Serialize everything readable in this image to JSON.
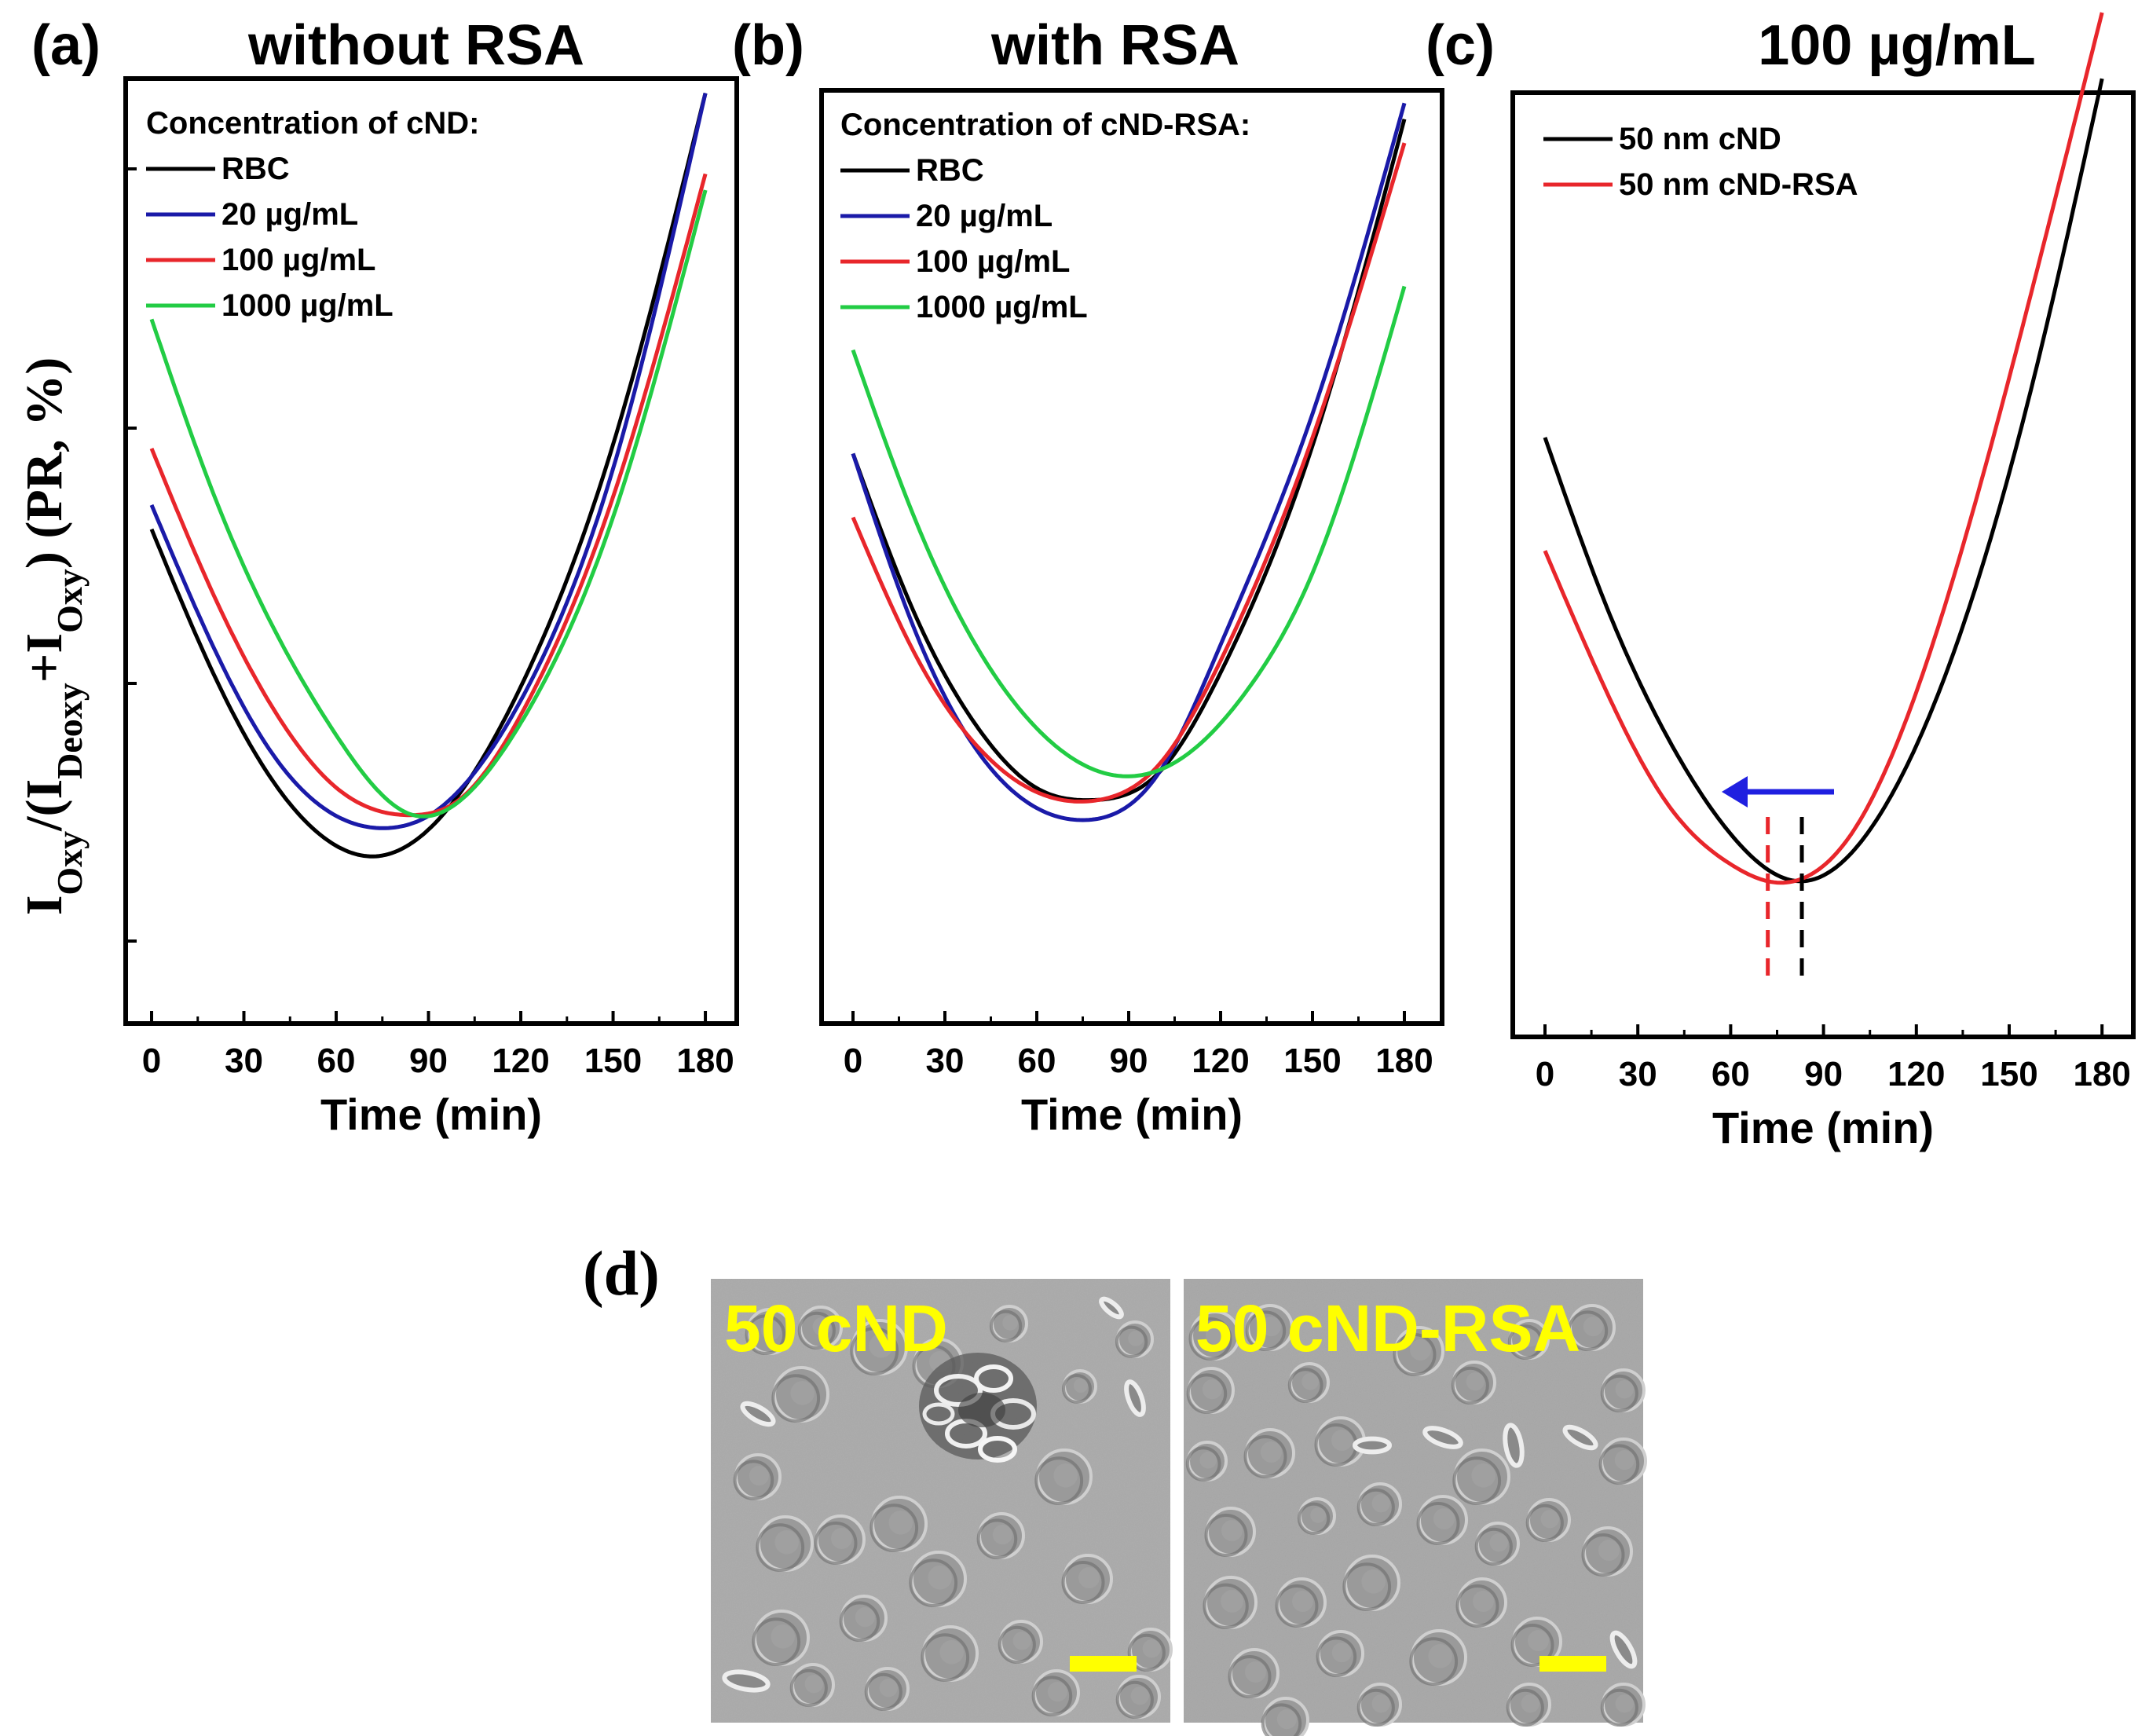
{
  "chart_data": [
    {
      "type": "line",
      "panel_label": "(a)",
      "title": "without RSA",
      "xlabel": "Time (min)",
      "ylabel": "I_Oxy/(I_Deoxy+I_Oxy) (PR, %)",
      "xlim": [
        -6,
        193
      ],
      "ylim": [
        0,
        100
      ],
      "xticks": [
        0,
        30,
        60,
        90,
        120,
        150,
        180
      ],
      "y_tick_labels_shown": false,
      "legend_title": "Concentration of cND:",
      "legend_position": "top-left",
      "series": [
        {
          "name": "RBC",
          "color": "#000000",
          "x": [
            0,
            20,
            40,
            60,
            73,
            90,
            120,
            150,
            180
          ],
          "y": [
            51.0,
            33.2,
            19.5,
            11.8,
            10.5,
            13.8,
            31.5,
            61.5,
            105.0
          ]
        },
        {
          "name": "20 µg/mL",
          "color": "#1a1aa8",
          "x": [
            0,
            20,
            40,
            60,
            77,
            90,
            120,
            150,
            180
          ],
          "y": [
            54.0,
            36.5,
            22.8,
            15.5,
            14.0,
            15.5,
            29.8,
            58.5,
            105.0
          ]
        },
        {
          "name": "100 µg/mL",
          "color": "#e8262b",
          "x": [
            0,
            20,
            40,
            60,
            85,
            100,
            120,
            150,
            180
          ],
          "y": [
            61.0,
            43.0,
            28.5,
            19.0,
            15.6,
            17.5,
            28.0,
            55.0,
            95.0
          ]
        },
        {
          "name": "1000 µg/mL",
          "color": "#22cc44",
          "x": [
            0,
            20,
            40,
            60,
            85,
            100,
            120,
            150,
            180
          ],
          "y": [
            77.0,
            55.5,
            38.5,
            25.5,
            15.6,
            17.3,
            27.0,
            52.5,
            93.0
          ]
        }
      ]
    },
    {
      "type": "line",
      "panel_label": "(b)",
      "title": "with RSA",
      "xlabel": "Time (min)",
      "ylabel": "",
      "xlim": [
        -6,
        193
      ],
      "ylim": [
        0,
        100
      ],
      "xticks": [
        0,
        30,
        60,
        90,
        120,
        150,
        180
      ],
      "y_tick_labels_shown": false,
      "legend_title": "Concentration of cND-RSA:",
      "legend_position": "top-left",
      "series": [
        {
          "name": "RBC",
          "color": "#000000",
          "x": [
            0,
            20,
            40,
            60,
            78,
            100,
            120,
            150,
            180
          ],
          "y": [
            61.0,
            41.0,
            27.0,
            19.0,
            17.5,
            21.0,
            33.5,
            62.0,
            103.0
          ]
        },
        {
          "name": "20 µg/mL",
          "color": "#1a1aa8",
          "x": [
            0,
            20,
            40,
            60,
            76,
            100,
            120,
            150,
            180
          ],
          "y": [
            61.0,
            39.0,
            24.0,
            16.5,
            15.0,
            21.0,
            37.0,
            66.0,
            105.0
          ]
        },
        {
          "name": "100 µg/mL",
          "color": "#e8262b",
          "x": [
            0,
            20,
            40,
            60,
            80,
            100,
            120,
            150,
            180
          ],
          "y": [
            53.0,
            36.0,
            24.5,
            18.5,
            17.5,
            22.0,
            35.0,
            63.0,
            100.0
          ]
        },
        {
          "name": "1000 µg/mL",
          "color": "#22cc44",
          "x": [
            0,
            20,
            40,
            60,
            88,
            110,
            130,
            150,
            180
          ],
          "y": [
            74.0,
            53.0,
            37.0,
            26.5,
            20.5,
            23.5,
            32.0,
            46.0,
            82.0
          ]
        }
      ]
    },
    {
      "type": "line",
      "panel_label": "(c)",
      "title": "100 µg/mL",
      "xlabel": "Time (min)",
      "ylabel": "",
      "xlim": [
        -6,
        193
      ],
      "ylim": [
        0,
        100
      ],
      "xticks": [
        0,
        30,
        60,
        90,
        120,
        150,
        180
      ],
      "y_tick_labels_shown": false,
      "legend_position": "top-left",
      "annotations": [
        {
          "kind": "minimum-marker",
          "x": 83,
          "color": "#000000",
          "style": "dashed"
        },
        {
          "kind": "minimum-marker",
          "x": 72,
          "color": "#e8262b",
          "style": "dashed"
        },
        {
          "kind": "arrow",
          "direction": "left",
          "color": "#1f1fe0",
          "meaning": "minimum shifts to earlier time"
        }
      ],
      "series": [
        {
          "name": "50 nm cND",
          "color": "#000000",
          "x": [
            0,
            20,
            40,
            60,
            83,
            110,
            140,
            160,
            180
          ],
          "y": [
            55.0,
            37.0,
            23.0,
            13.0,
            8.0,
            16.0,
            40.0,
            64.0,
            93.0
          ]
        },
        {
          "name": "50 nm cND-RSA",
          "color": "#e8262b",
          "x": [
            0,
            20,
            40,
            60,
            72,
            100,
            130,
            160,
            180
          ],
          "y": [
            43.0,
            28.0,
            16.0,
            9.8,
            8.0,
            13.5,
            38.0,
            74.0,
            100.0
          ]
        }
      ]
    }
  ],
  "micrographs": {
    "panel_label": "(d)",
    "images": [
      {
        "label": "50 cND",
        "description_color": "#ffff00"
      },
      {
        "label": "50 cND-RSA",
        "description_color": "#ffff00"
      }
    ]
  }
}
